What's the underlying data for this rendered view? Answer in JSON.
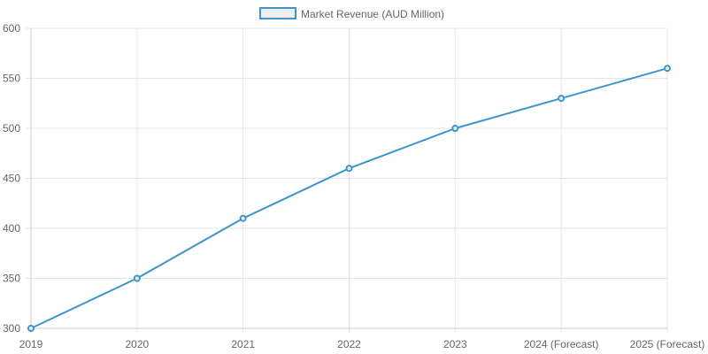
{
  "chart_data": {
    "type": "line",
    "title": "",
    "xlabel": "",
    "ylabel": "",
    "categories": [
      "2019",
      "2020",
      "2021",
      "2022",
      "2023",
      "2024 (Forecast)",
      "2025 (Forecast)"
    ],
    "series": [
      {
        "name": "Market Revenue (AUD Million)",
        "values": [
          300,
          350,
          410,
          460,
          500,
          530,
          560
        ],
        "color": "#3e95cd"
      }
    ],
    "ylim": [
      300,
      600
    ],
    "yticks": [
      "300",
      "350",
      "400",
      "450",
      "500",
      "550",
      "600"
    ],
    "grid": true,
    "legend": "top"
  }
}
